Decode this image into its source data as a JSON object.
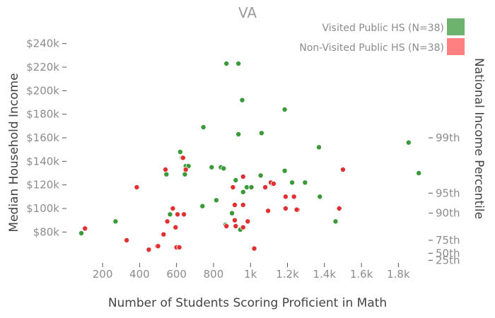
{
  "chart_data": {
    "type": "scatter",
    "title": "VA",
    "xlabel": "Number of Students Scoring Proficient in Math",
    "ylabel": "Median Household Income",
    "y2label": "National Income Percentile",
    "xlim": [
      20,
      1940
    ],
    "ylim": [
      55000,
      250000
    ],
    "x_ticks": [
      200,
      400,
      600,
      800,
      1000,
      1200,
      1400,
      1600,
      1800
    ],
    "x_tick_labels": [
      "200",
      "400",
      "600",
      "800",
      "1k",
      "1.2k",
      "1.4k",
      "1.6k",
      "1.8k"
    ],
    "y_ticks": [
      80000,
      100000,
      120000,
      140000,
      160000,
      180000,
      200000,
      220000,
      240000
    ],
    "y_tick_labels": [
      "$80k",
      "$100k",
      "$120k",
      "$140k",
      "$160k",
      "$180k",
      "$200k",
      "$220k",
      "$240k"
    ],
    "y2_ticks": [
      {
        "label": "25th",
        "value": 56000
      },
      {
        "label": "50th",
        "value": 62000
      },
      {
        "label": "75th",
        "value": 73000
      },
      {
        "label": "90th",
        "value": 96000
      },
      {
        "label": "95th",
        "value": 113000
      },
      {
        "label": "99th",
        "value": 160000
      }
    ],
    "grid": false,
    "legend_position": "top-right",
    "series": [
      {
        "name": "Visited Public HS (N=38)",
        "color": "#3a9a3a",
        "legend_color": "#6db36d",
        "points": [
          [
            85,
            79000
          ],
          [
            270,
            89000
          ],
          [
            565,
            95000
          ],
          [
            545,
            129000
          ],
          [
            620,
            148000
          ],
          [
            630,
            143000
          ],
          [
            645,
            129000
          ],
          [
            650,
            136000
          ],
          [
            665,
            136000
          ],
          [
            740,
            102000
          ],
          [
            745,
            169000
          ],
          [
            790,
            135000
          ],
          [
            815,
            107000
          ],
          [
            840,
            135000
          ],
          [
            855,
            134000
          ],
          [
            870,
            223000
          ],
          [
            865,
            86000
          ],
          [
            900,
            96000
          ],
          [
            920,
            124000
          ],
          [
            935,
            163000
          ],
          [
            935,
            223000
          ],
          [
            945,
            82000
          ],
          [
            955,
            192000
          ],
          [
            960,
            114000
          ],
          [
            980,
            118000
          ],
          [
            1005,
            118000
          ],
          [
            1055,
            128000
          ],
          [
            1060,
            164000
          ],
          [
            1115,
            121000
          ],
          [
            1185,
            132000
          ],
          [
            1185,
            184000
          ],
          [
            1225,
            122000
          ],
          [
            1295,
            122000
          ],
          [
            1370,
            152000
          ],
          [
            1375,
            110000
          ],
          [
            1460,
            89000
          ],
          [
            1855,
            156000
          ],
          [
            1910,
            130000
          ]
        ]
      },
      {
        "name": "Non-Visited Public HS (N=38)",
        "color": "#e03030",
        "legend_color": "#ff8080",
        "points": [
          [
            105,
            83000
          ],
          [
            330,
            73000
          ],
          [
            385,
            118000
          ],
          [
            450,
            65000
          ],
          [
            495,
            68000
          ],
          [
            500,
            68000
          ],
          [
            530,
            78000
          ],
          [
            540,
            133000
          ],
          [
            550,
            89000
          ],
          [
            580,
            100000
          ],
          [
            595,
            84000
          ],
          [
            600,
            67000
          ],
          [
            605,
            95000
          ],
          [
            615,
            67000
          ],
          [
            635,
            143000
          ],
          [
            640,
            95000
          ],
          [
            650,
            133000
          ],
          [
            870,
            85000
          ],
          [
            905,
            118000
          ],
          [
            915,
            90000
          ],
          [
            915,
            103000
          ],
          [
            920,
            85000
          ],
          [
            960,
            84000
          ],
          [
            960,
            103000
          ],
          [
            960,
            127000
          ],
          [
            985,
            89000
          ],
          [
            1020,
            66000
          ],
          [
            1080,
            118000
          ],
          [
            1095,
            98000
          ],
          [
            1110,
            122000
          ],
          [
            1125,
            121000
          ],
          [
            1190,
            100000
          ],
          [
            1190,
            110000
          ],
          [
            1235,
            110000
          ],
          [
            1255,
            99000
          ],
          [
            1250,
            99000
          ],
          [
            1480,
            100000
          ],
          [
            1500,
            133000
          ]
        ]
      }
    ]
  }
}
